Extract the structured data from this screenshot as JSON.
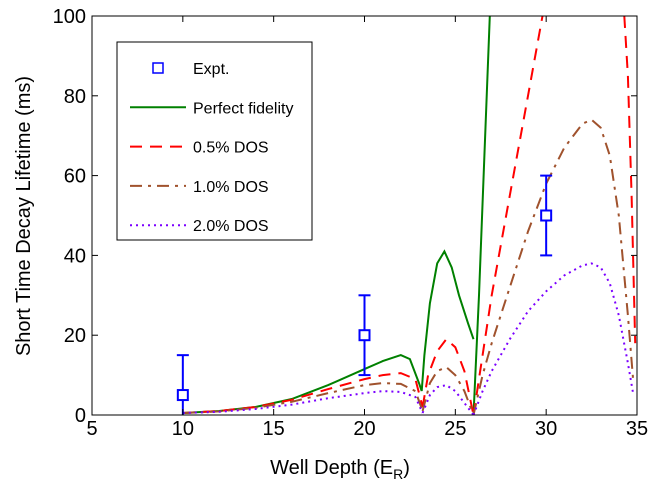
{
  "chart_data": {
    "type": "line",
    "title": "",
    "xlabel": "Well Depth (E",
    "xlabel_sub": "R",
    "xlabel_close": ")",
    "ylabel": "Short Time Decay Lifetime (ms)",
    "xlim": [
      5,
      35
    ],
    "ylim": [
      0,
      100
    ],
    "xticks": [
      5,
      10,
      15,
      20,
      25,
      30,
      35
    ],
    "yticks": [
      0,
      20,
      40,
      60,
      80,
      100
    ],
    "grid": false,
    "legend_position": "top-left",
    "experiment": {
      "name": "Expt.",
      "color": "#0000ff",
      "points": [
        {
          "x": 10,
          "y": 5,
          "ylow": 0,
          "yhigh": 15
        },
        {
          "x": 20,
          "y": 20,
          "ylow": 10,
          "yhigh": 30
        },
        {
          "x": 30,
          "y": 50,
          "ylow": 40,
          "yhigh": 60
        }
      ]
    },
    "series": [
      {
        "name": "Perfect fidelity",
        "color": "#008000",
        "dash": "solid",
        "segments": [
          [
            [
              10,
              0.5
            ],
            [
              12,
              1
            ],
            [
              14,
              2
            ],
            [
              16,
              4
            ],
            [
              18,
              7.5
            ],
            [
              20,
              11.5
            ],
            [
              21,
              13.5
            ],
            [
              22,
              15
            ],
            [
              22.5,
              14
            ],
            [
              23,
              8
            ],
            [
              23.15,
              6
            ]
          ],
          [
            [
              23.15,
              6
            ],
            [
              23.3,
              15
            ],
            [
              23.6,
              28
            ],
            [
              24,
              38
            ],
            [
              24.4,
              41
            ],
            [
              24.8,
              37
            ],
            [
              25.2,
              30
            ],
            [
              25.7,
              23
            ],
            [
              26,
              19
            ]
          ],
          [
            [
              26,
              0
            ],
            [
              26.3,
              30
            ],
            [
              26.6,
              65
            ],
            [
              26.9,
              100
            ]
          ]
        ]
      },
      {
        "name": "0.5% DOS",
        "color": "#ff0000",
        "dash": "12,8",
        "segments": [
          [
            [
              10,
              0.5
            ],
            [
              12,
              1
            ],
            [
              14,
              2
            ],
            [
              16,
              3.8
            ],
            [
              18,
              6.5
            ],
            [
              20,
              9
            ],
            [
              21,
              10
            ],
            [
              22,
              10.5
            ],
            [
              22.8,
              9
            ],
            [
              23.2,
              2
            ]
          ],
          [
            [
              23.2,
              2
            ],
            [
              23.5,
              10
            ],
            [
              24,
              16
            ],
            [
              24.5,
              19
            ],
            [
              25,
              17
            ],
            [
              25.5,
              11
            ],
            [
              26,
              0
            ]
          ],
          [
            [
              26,
              0
            ],
            [
              26.5,
              15
            ],
            [
              27,
              30
            ],
            [
              28,
              55
            ],
            [
              29,
              80
            ],
            [
              29.8,
              100
            ]
          ]
        ]
      },
      {
        "name": "1.0% DOS",
        "color": "#a0522d",
        "dash": "12,6,3,6",
        "segments": [
          [
            [
              10,
              0.5
            ],
            [
              12,
              0.9
            ],
            [
              14,
              1.8
            ],
            [
              16,
              3.3
            ],
            [
              18,
              5.5
            ],
            [
              20,
              7.5
            ],
            [
              21,
              8
            ],
            [
              22,
              7.8
            ],
            [
              22.8,
              6
            ],
            [
              23.2,
              1
            ]
          ],
          [
            [
              23.2,
              1
            ],
            [
              23.6,
              8
            ],
            [
              24,
              11
            ],
            [
              24.5,
              12
            ],
            [
              25,
              10
            ],
            [
              25.5,
              6
            ],
            [
              26,
              0
            ]
          ],
          [
            [
              26,
              0
            ],
            [
              26.5,
              10
            ],
            [
              27,
              18
            ],
            [
              28,
              32
            ],
            [
              29,
              46
            ],
            [
              30,
              58
            ],
            [
              31,
              67
            ],
            [
              32,
              73
            ],
            [
              32.5,
              74
            ],
            [
              33,
              72
            ],
            [
              33.5,
              65
            ],
            [
              34,
              50
            ],
            [
              34.5,
              25
            ],
            [
              34.8,
              8
            ]
          ]
        ]
      },
      {
        "name": "2.0% DOS",
        "color": "#7b00ff",
        "dash": "2,4",
        "segments": [
          [
            [
              10,
              0.5
            ],
            [
              12,
              0.8
            ],
            [
              14,
              1.5
            ],
            [
              16,
              2.6
            ],
            [
              18,
              4.2
            ],
            [
              20,
              5.5
            ],
            [
              21,
              6
            ],
            [
              22,
              5.8
            ],
            [
              22.8,
              4.5
            ],
            [
              23.2,
              0.5
            ]
          ],
          [
            [
              23.2,
              0.5
            ],
            [
              23.6,
              5
            ],
            [
              24,
              7
            ],
            [
              24.5,
              7.5
            ],
            [
              25,
              6
            ],
            [
              25.5,
              3
            ],
            [
              26,
              0
            ]
          ],
          [
            [
              26,
              0
            ],
            [
              26.5,
              6
            ],
            [
              27,
              11
            ],
            [
              28,
              19
            ],
            [
              29,
              26
            ],
            [
              30,
              31
            ],
            [
              31,
              35
            ],
            [
              32,
              37.5
            ],
            [
              32.5,
              38
            ],
            [
              33,
              37
            ],
            [
              33.5,
              33
            ],
            [
              34,
              25
            ],
            [
              34.5,
              13
            ],
            [
              34.8,
              5
            ]
          ]
        ]
      }
    ],
    "extra_segment": {
      "series": "0.5% DOS",
      "points": [
        [
          34.3,
          100
        ],
        [
          34.5,
          85
        ],
        [
          34.7,
          55
        ],
        [
          34.9,
          18
        ]
      ]
    }
  }
}
